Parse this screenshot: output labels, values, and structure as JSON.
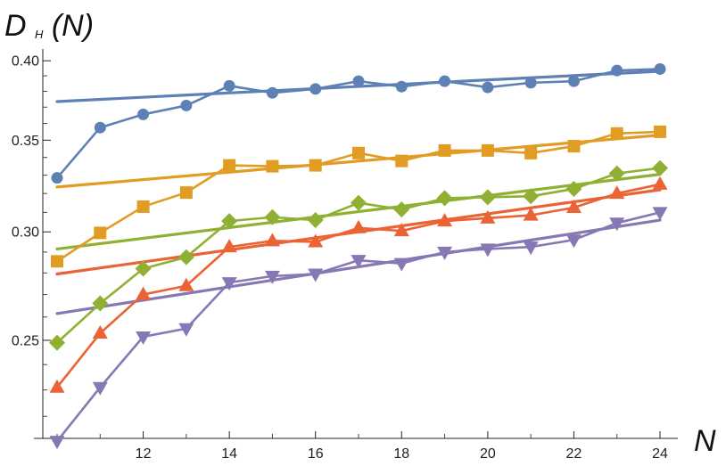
{
  "chart_data": {
    "type": "line",
    "title": "",
    "xlabel": "N",
    "ylabel": {
      "main": "D",
      "subscript": "H",
      "suffix": "(N)"
    },
    "scale": {
      "x": "linear",
      "y": "log"
    },
    "xlim": [
      10,
      24
    ],
    "ylim": [
      0.212,
      0.408
    ],
    "x_ticks": [
      {
        "value": 12,
        "label": "12"
      },
      {
        "value": 14,
        "label": "14"
      },
      {
        "value": 16,
        "label": "16"
      },
      {
        "value": 18,
        "label": "18"
      },
      {
        "value": 20,
        "label": "20"
      },
      {
        "value": 22,
        "label": "22"
      },
      {
        "value": 24,
        "label": "24"
      }
    ],
    "y_ticks": [
      {
        "value": 0.25,
        "label": "0.25"
      },
      {
        "value": 0.3,
        "label": "0.30"
      },
      {
        "value": 0.35,
        "label": "0.35"
      },
      {
        "value": 0.4,
        "label": "0.40"
      }
    ],
    "x": [
      10,
      11,
      12,
      13,
      14,
      15,
      16,
      17,
      18,
      19,
      20,
      21,
      22,
      23,
      24
    ],
    "series": [
      {
        "color": "#5E81B5",
        "marker": "circle",
        "values": [
          0.3285,
          0.3575,
          0.3655,
          0.371,
          0.3835,
          0.379,
          0.3815,
          0.3865,
          0.383,
          0.3865,
          0.3825,
          0.3855,
          0.3865,
          0.3935,
          0.3945
        ],
        "fit": [
          0.3735,
          0.393
        ]
      },
      {
        "color": "#E19C24",
        "marker": "square",
        "values": [
          0.2855,
          0.2995,
          0.313,
          0.3205,
          0.3355,
          0.335,
          0.3355,
          0.3425,
          0.338,
          0.344,
          0.344,
          0.3425,
          0.3465,
          0.354,
          0.355
        ],
        "fit": [
          0.3235,
          0.353
        ]
      },
      {
        "color": "#8FB032",
        "marker": "diamond",
        "values": [
          0.249,
          0.266,
          0.282,
          0.2875,
          0.3055,
          0.3075,
          0.306,
          0.315,
          0.3115,
          0.3175,
          0.318,
          0.3185,
          0.3225,
          0.331,
          0.334
        ],
        "fit": [
          0.2915,
          0.3305
        ]
      },
      {
        "color": "#EB6235",
        "marker": "triangle-up",
        "values": [
          0.231,
          0.253,
          0.27,
          0.274,
          0.2925,
          0.2955,
          0.295,
          0.302,
          0.3005,
          0.3055,
          0.307,
          0.3085,
          0.3125,
          0.32,
          0.325
        ],
        "fit": [
          0.2795,
          0.322
        ]
      },
      {
        "color": "#8778B3",
        "marker": "triangle-down",
        "values": [
          0.211,
          0.231,
          0.2515,
          0.255,
          0.2755,
          0.2785,
          0.2795,
          0.286,
          0.2845,
          0.29,
          0.2915,
          0.2925,
          0.296,
          0.3045,
          0.31
        ],
        "fit": [
          0.2615,
          0.306
        ]
      }
    ]
  }
}
